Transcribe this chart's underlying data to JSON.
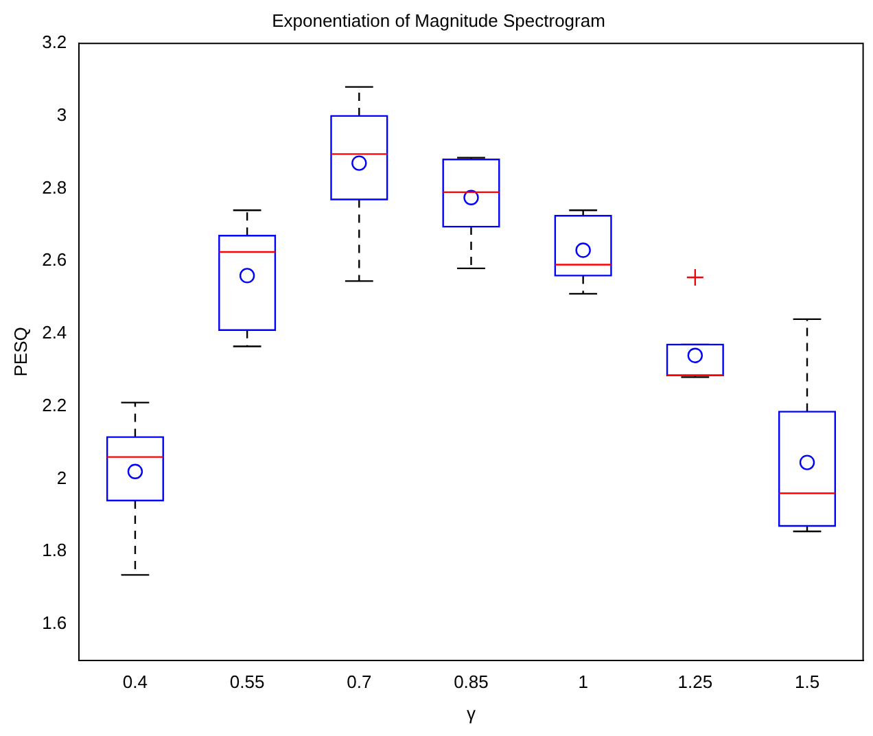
{
  "chart_data": {
    "type": "box",
    "title": "Exponentiation of Magnitude Spectrogram",
    "xlabel": "γ",
    "ylabel": "PESQ",
    "categories": [
      "0.4",
      "0.55",
      "0.7",
      "0.85",
      "1",
      "1.25",
      "1.5"
    ],
    "boxes": [
      {
        "low": 1.735,
        "q1": 1.94,
        "median": 2.06,
        "q3": 2.115,
        "high": 2.21,
        "mean": 2.02
      },
      {
        "low": 2.365,
        "q1": 2.41,
        "median": 2.625,
        "q3": 2.67,
        "high": 2.74,
        "mean": 2.56
      },
      {
        "low": 2.545,
        "q1": 2.77,
        "median": 2.895,
        "q3": 3.0,
        "high": 3.08,
        "mean": 2.87
      },
      {
        "low": 2.58,
        "q1": 2.695,
        "median": 2.79,
        "q3": 2.88,
        "high": 2.885,
        "mean": 2.775
      },
      {
        "low": 2.51,
        "q1": 2.56,
        "median": 2.59,
        "q3": 2.725,
        "high": 2.74,
        "mean": 2.63
      },
      {
        "low": 2.28,
        "q1": 2.285,
        "median": 2.285,
        "q3": 2.37,
        "high": 2.37,
        "mean": 2.34,
        "outliers": [
          2.555
        ]
      },
      {
        "low": 1.855,
        "q1": 1.87,
        "median": 1.96,
        "q3": 2.185,
        "high": 2.44,
        "mean": 2.045
      }
    ],
    "ylim": [
      1.5,
      3.2
    ],
    "yticks": [
      1.6,
      1.8,
      2,
      2.2,
      2.4,
      2.6,
      2.8,
      3,
      3.2
    ]
  }
}
